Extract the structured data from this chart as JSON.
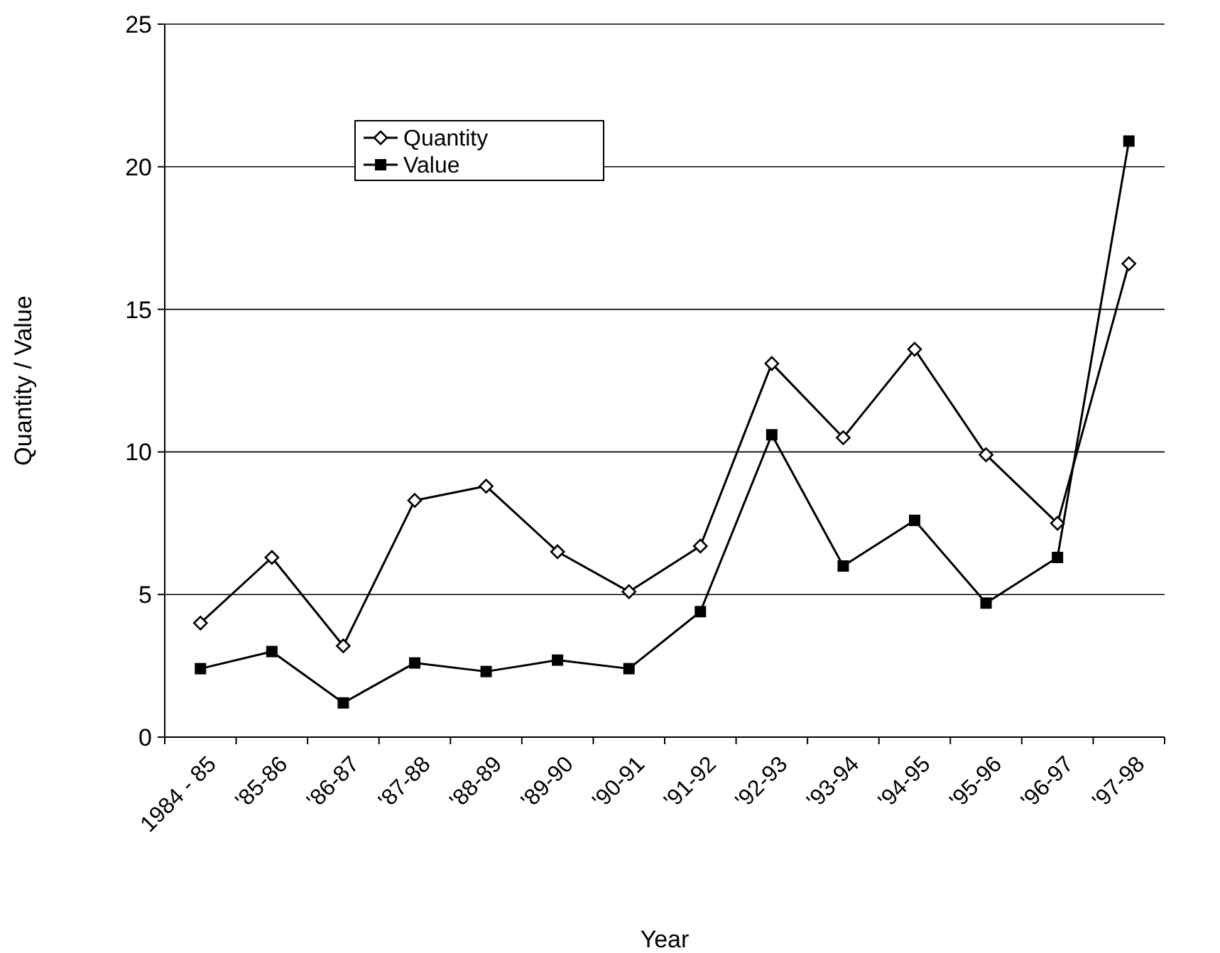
{
  "chart_data": {
    "type": "line",
    "xlabel": "Year",
    "ylabel": "Quantity / Value",
    "categories": [
      "1984 - 85",
      "'85-86",
      "'86-87",
      "'87-88",
      "'88-89",
      "'89-90",
      "'90-91",
      "'91-92",
      "'92-93",
      "'93-94",
      "'94-95",
      "'95-96",
      "'96-97",
      "'97-98"
    ],
    "series": [
      {
        "name": "Quantity",
        "color": "#000000",
        "marker": "diamond",
        "values": [
          4.0,
          6.3,
          3.2,
          8.3,
          8.8,
          6.5,
          5.1,
          6.7,
          13.1,
          10.5,
          13.6,
          9.9,
          7.5,
          16.6
        ]
      },
      {
        "name": "Value",
        "color": "#000000",
        "marker": "square",
        "values": [
          2.4,
          3.0,
          1.2,
          2.6,
          2.3,
          2.7,
          2.4,
          4.4,
          10.6,
          6.0,
          7.6,
          4.7,
          6.3,
          20.9
        ]
      }
    ],
    "ylim": [
      0,
      25
    ],
    "yticks": [
      0,
      5,
      10,
      15,
      20,
      25
    ],
    "grid": "y",
    "legend": "top left"
  }
}
